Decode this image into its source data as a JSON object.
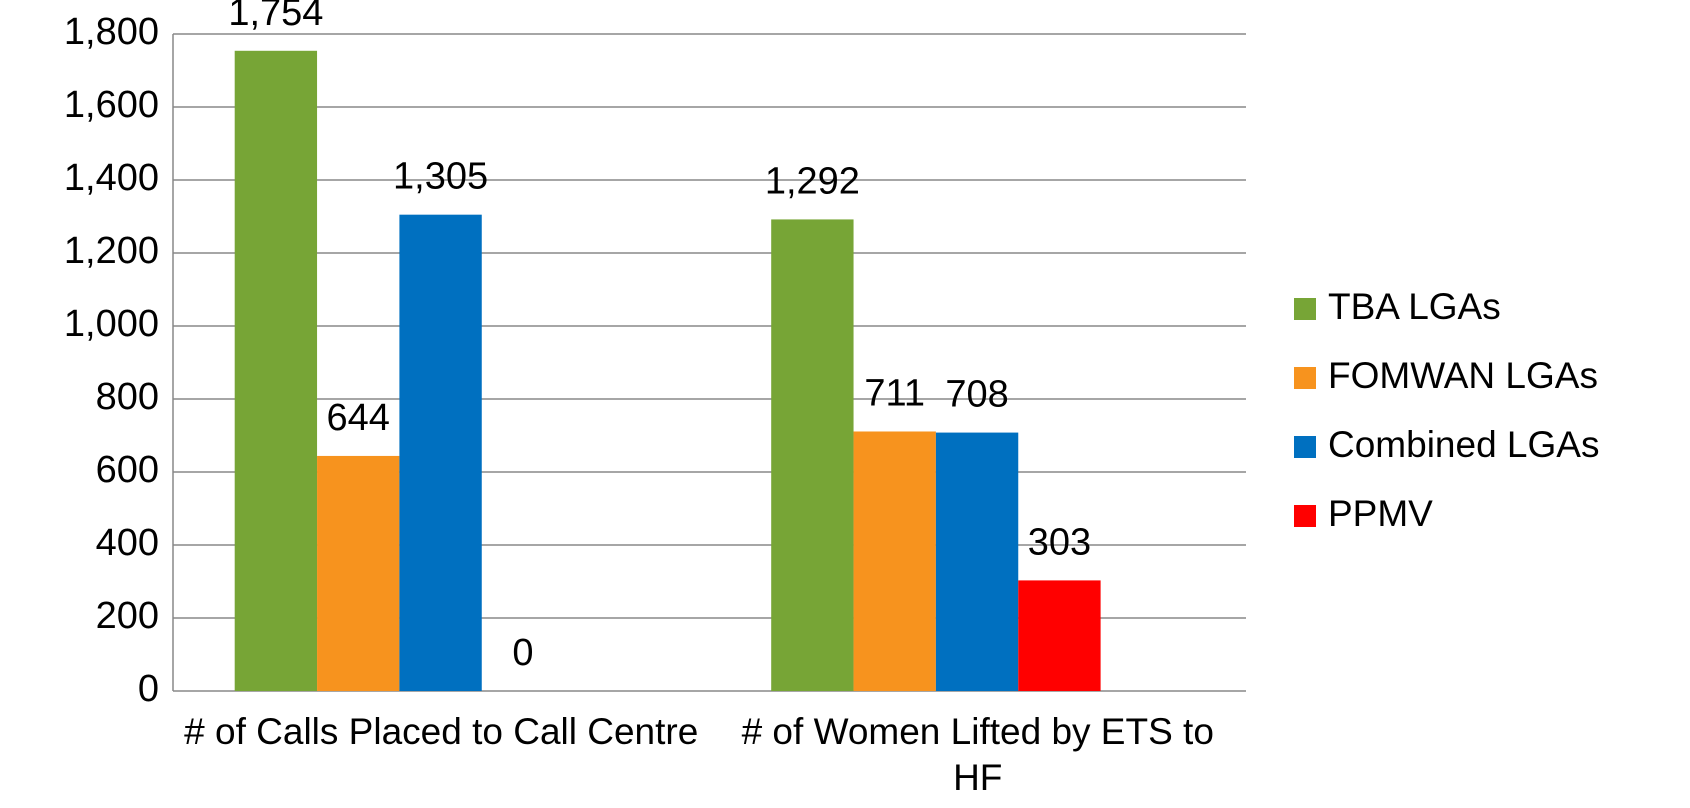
{
  "chart_data": {
    "type": "bar",
    "categories": [
      "# of Calls Placed to Call Centre",
      "# of Women Lifted by ETS to HF"
    ],
    "series": [
      {
        "name": "TBA LGAs",
        "color": "#77a536",
        "values": [
          1754,
          1292
        ],
        "value_labels": [
          "1,754",
          "1,292"
        ]
      },
      {
        "name": "FOMWAN LGAs",
        "color": "#f7931e",
        "values": [
          644,
          711
        ]
      },
      {
        "name": "Combined LGAs",
        "color": "#0070c0",
        "values": [
          1305,
          708
        ],
        "value_labels": [
          "1,305",
          "708"
        ]
      },
      {
        "name": "PPMV",
        "color": "#ff0000",
        "values": [
          0,
          303
        ]
      }
    ],
    "ylim": [
      0,
      1800
    ],
    "yticks": [
      0,
      200,
      400,
      600,
      800,
      {
        "value": 1000,
        "label": "1,000"
      },
      {
        "value": 1200,
        "label": "1,200"
      },
      {
        "value": 1400,
        "label": "1,400"
      },
      {
        "value": 1600,
        "label": "1,600"
      },
      {
        "value": 1800,
        "label": "1,800"
      }
    ],
    "grid": true,
    "legend": "right"
  }
}
